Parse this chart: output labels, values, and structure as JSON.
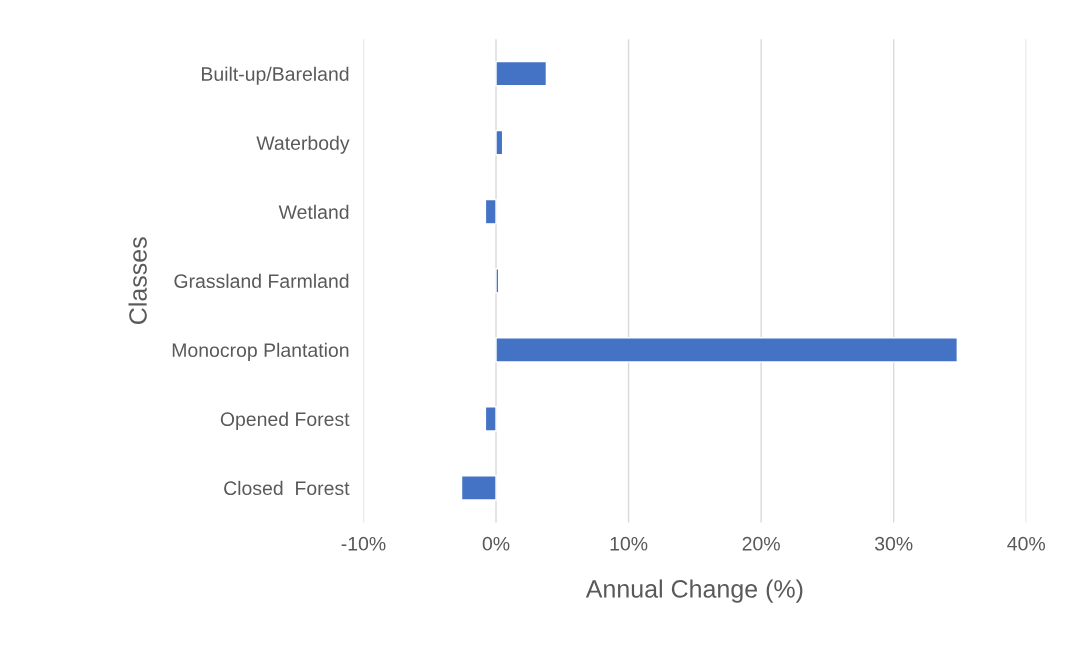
{
  "chart_data": {
    "type": "bar",
    "orientation": "horizontal",
    "categories": [
      "Built-up/Bareland",
      "Waterbody",
      "Wetland",
      "Grassland Farmland",
      "Monocrop Plantation",
      "Opened Forest",
      "Closed  Forest"
    ],
    "values": [
      3.8,
      0.5,
      -0.8,
      0.2,
      34.8,
      -0.8,
      -2.6
    ],
    "color": "#4472c4",
    "xlabel": "Annual Change (%)",
    "ylabel": "Classes",
    "xlim": [
      -10,
      40
    ],
    "xticks": [
      {
        "value": -10,
        "label": "-10%"
      },
      {
        "value": 0,
        "label": "0%"
      },
      {
        "value": 10,
        "label": "10%"
      },
      {
        "value": 20,
        "label": "20%"
      },
      {
        "value": 30,
        "label": "30%"
      },
      {
        "value": 40,
        "label": "40%"
      }
    ],
    "grid": "x",
    "legend": false
  }
}
